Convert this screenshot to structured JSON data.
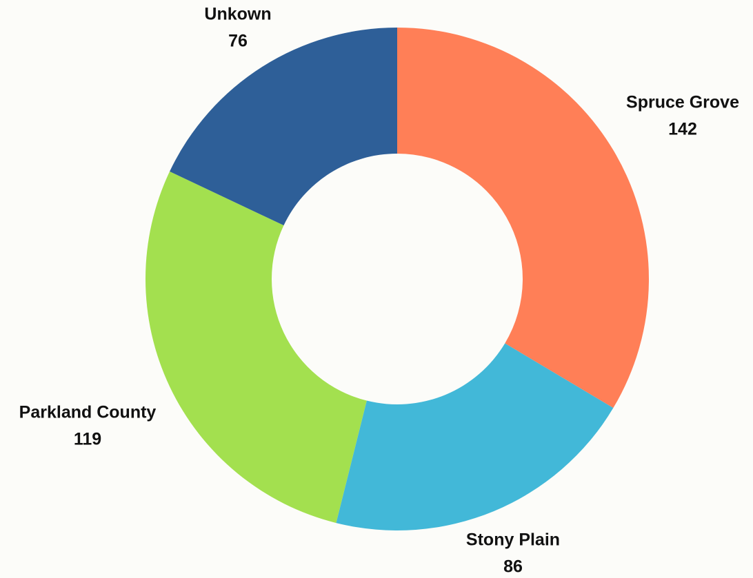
{
  "chart_data": {
    "type": "donut",
    "categories": [
      "Spruce Grove",
      "Stony Plain",
      "Parkland County",
      "Unkown"
    ],
    "values": [
      142,
      86,
      119,
      76
    ],
    "colors": [
      "#ff7f57",
      "#42b8d8",
      "#a3e04f",
      "#2e5f98"
    ]
  }
}
